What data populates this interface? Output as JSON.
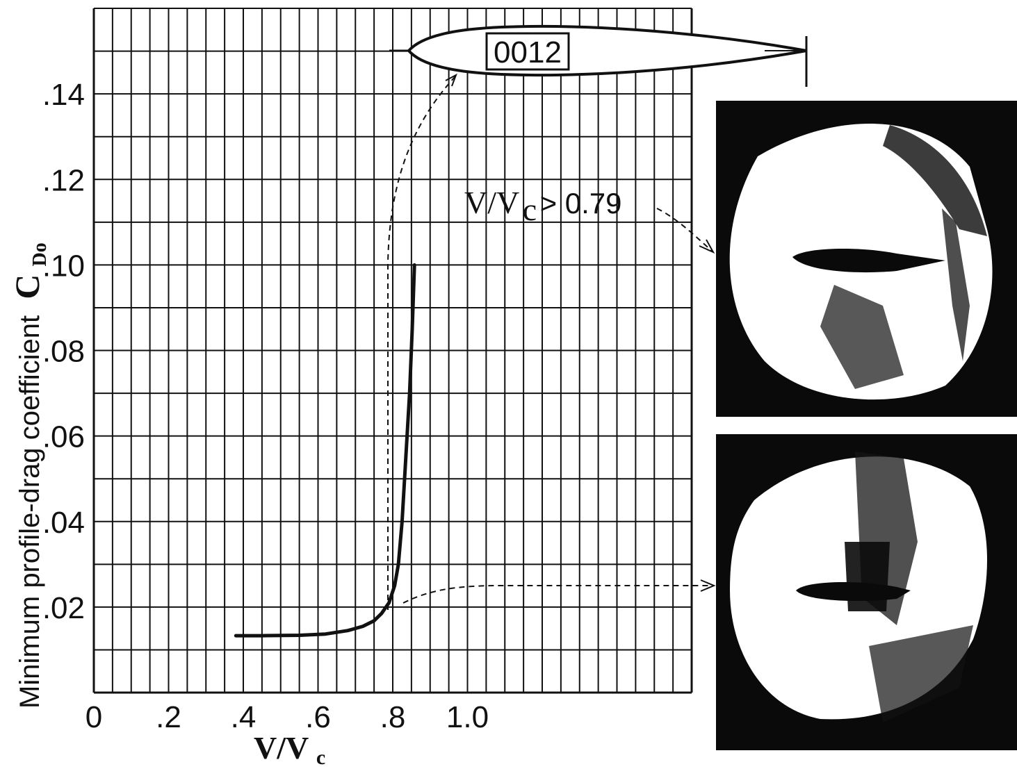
{
  "chart_data": {
    "type": "line",
    "title": "",
    "xlabel": "V/V",
    "xlabel_sub": "c",
    "ylabel": "Minimum profile-drag coefficient",
    "ylabel_symbol": "C",
    "ylabel_symbol_sub": "Do",
    "xlim": [
      0,
      1.6
    ],
    "ylim": [
      0,
      0.16
    ],
    "x_ticks": [
      {
        "value": 0,
        "label": "0"
      },
      {
        "value": 0.2,
        "label": ".2"
      },
      {
        "value": 0.4,
        "label": ".4"
      },
      {
        "value": 0.6,
        "label": ".6"
      },
      {
        "value": 0.8,
        "label": ".8"
      },
      {
        "value": 1.0,
        "label": "1.0"
      }
    ],
    "y_ticks": [
      {
        "value": 0.02,
        "label": ".02"
      },
      {
        "value": 0.04,
        "label": ".04"
      },
      {
        "value": 0.06,
        "label": ".06"
      },
      {
        "value": 0.08,
        "label": ".08"
      },
      {
        "value": 0.1,
        "label": ".10"
      },
      {
        "value": 0.12,
        "label": ".12"
      },
      {
        "value": 0.14,
        "label": ".14"
      }
    ],
    "grid": true,
    "series": [
      {
        "x": [
          0.38,
          0.45,
          0.55,
          0.62,
          0.68,
          0.72,
          0.75,
          0.77,
          0.79,
          0.805,
          0.815,
          0.825,
          0.835,
          0.845,
          0.852,
          0.858
        ],
        "y": [
          0.0133,
          0.0133,
          0.0134,
          0.0137,
          0.0145,
          0.0155,
          0.0168,
          0.0185,
          0.021,
          0.025,
          0.03,
          0.04,
          0.055,
          0.07,
          0.085,
          0.1
        ]
      }
    ],
    "airfoil_label": "0012",
    "annotations": [
      {
        "text": "V/V",
        "sub": "c",
        "suffix": " > 0.79"
      }
    ]
  },
  "colors": {
    "line": "#111111",
    "grid": "#111111",
    "photo_bg": "#0a0a0a",
    "photo_field": "#ffffff"
  }
}
